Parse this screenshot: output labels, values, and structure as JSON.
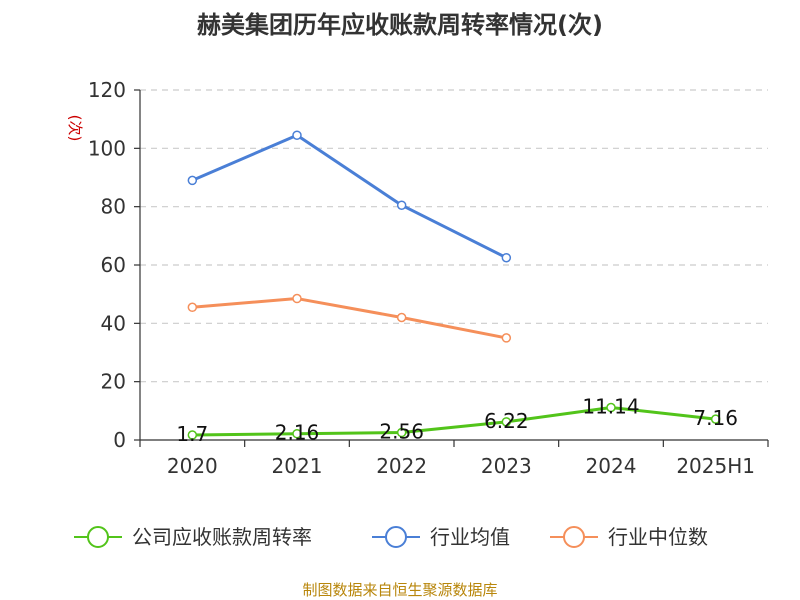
{
  "chart_data": {
    "type": "line",
    "title": "赫美集团历年应收账款周转率情况(次)",
    "ylabel": "(次)",
    "xlabel": "",
    "categories": [
      "2020",
      "2021",
      "2022",
      "2023",
      "2024",
      "2025H1"
    ],
    "ylim": [
      0,
      120
    ],
    "yticks": [
      0,
      20,
      40,
      60,
      80,
      100,
      120
    ],
    "grid": true,
    "legend_position": "bottom",
    "series": [
      {
        "name": "公司应收账款周转率",
        "color": "#52c41a",
        "values": [
          1.7,
          2.16,
          2.56,
          6.22,
          11.14,
          7.16
        ],
        "labels": [
          "1.7",
          "2.16",
          "2.56",
          "6.22",
          "11.14",
          "7.16"
        ]
      },
      {
        "name": "行业均值",
        "color": "#4a7fd6",
        "values": [
          89,
          104.5,
          80.5,
          62.5,
          null,
          null
        ]
      },
      {
        "name": "行业中位数",
        "color": "#f58f5a",
        "values": [
          45.5,
          48.5,
          42,
          35,
          null,
          null
        ]
      }
    ],
    "source": "制图数据来自恒生聚源数据库"
  }
}
